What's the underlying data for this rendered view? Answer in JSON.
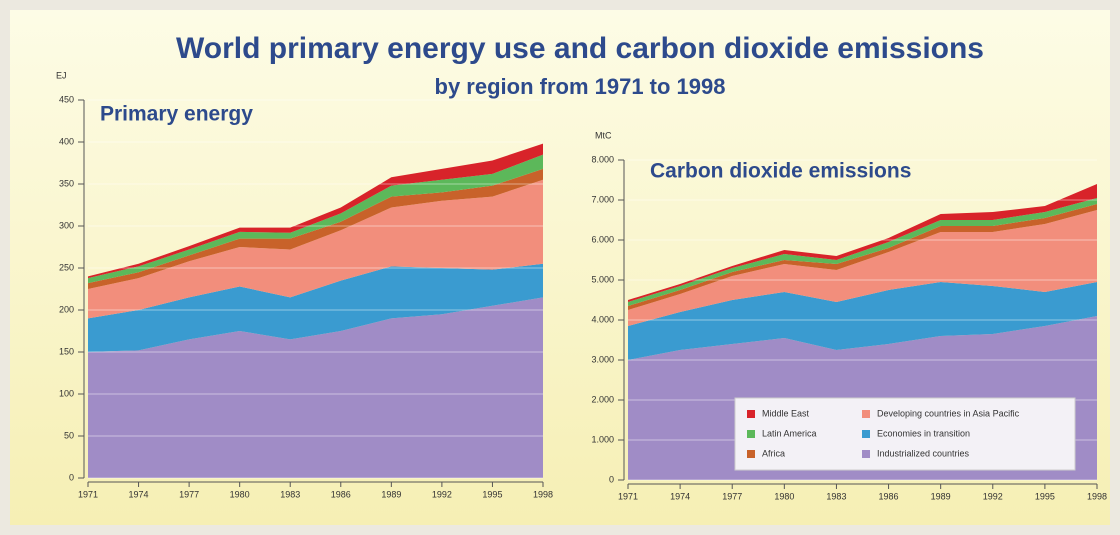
{
  "title": "World primary energy use and carbon dioxide emissions",
  "subtitle": "by region from 1971 to 1998",
  "chart_data": [
    {
      "type": "stacked-area",
      "title": "Primary  energy",
      "y_label": "EJ",
      "x": [
        1971,
        1974,
        1977,
        1980,
        1983,
        1986,
        1989,
        1992,
        1995,
        1998
      ],
      "xlim": [
        1971,
        1998
      ],
      "xticks": [
        1971,
        1974,
        1977,
        1980,
        1983,
        1986,
        1989,
        1992,
        1995,
        1998
      ],
      "ylim": [
        0,
        450
      ],
      "yticks": [
        0,
        50,
        100,
        150,
        200,
        250,
        300,
        350,
        400,
        450
      ],
      "grid": true,
      "legend": false,
      "series": [
        {
          "color": "#a08cc6",
          "values": [
            150,
            152,
            165,
            175,
            165,
            175,
            190,
            195,
            205,
            215
          ]
        },
        {
          "color": "#3a9bd0",
          "values": [
            40,
            48,
            50,
            53,
            50,
            60,
            62,
            55,
            43,
            40
          ]
        },
        {
          "color": "#f28e7c",
          "values": [
            35,
            38,
            43,
            47,
            57,
            60,
            70,
            80,
            87,
            100
          ]
        },
        {
          "color": "#c8622a",
          "values": [
            7,
            7,
            7,
            10,
            13,
            10,
            13,
            10,
            13,
            13
          ]
        },
        {
          "color": "#5cb85a",
          "values": [
            6,
            7,
            7,
            8,
            7,
            10,
            13,
            15,
            14,
            17
          ]
        },
        {
          "color": "#d8232a",
          "values": [
            2,
            3,
            4,
            5,
            6,
            7,
            10,
            13,
            16,
            13
          ]
        }
      ]
    },
    {
      "type": "stacked-area",
      "title": "Carbon dioxide emissions",
      "y_label": "MtC",
      "x": [
        1971,
        1974,
        1977,
        1980,
        1983,
        1986,
        1989,
        1992,
        1995,
        1998
      ],
      "xlim": [
        1971,
        1998
      ],
      "xticks": [
        1971,
        1974,
        1977,
        1980,
        1983,
        1986,
        1989,
        1992,
        1995,
        1998
      ],
      "ylim": [
        0,
        8000
      ],
      "yticks": [
        0,
        {
          "value": 1000,
          "label": "1.000"
        },
        {
          "value": 2000,
          "label": "2.000"
        },
        {
          "value": 3000,
          "label": "3.000"
        },
        {
          "value": 4000,
          "label": "4.000"
        },
        {
          "value": 5000,
          "label": "5.000"
        },
        {
          "value": 6000,
          "label": "6.000"
        },
        {
          "value": 7000,
          "label": "7.000"
        },
        {
          "value": 8000,
          "label": "8.000"
        }
      ],
      "grid": true,
      "legend": "bottom right",
      "series": [
        {
          "name": "Industrialized countries",
          "color": "#a08cc6",
          "values": [
            3000,
            3250,
            3400,
            3550,
            3250,
            3400,
            3600,
            3650,
            3850,
            4100
          ]
        },
        {
          "name": "Economies in transition",
          "color": "#3a9bd0",
          "values": [
            850,
            950,
            1100,
            1150,
            1200,
            1350,
            1350,
            1200,
            850,
            850
          ]
        },
        {
          "name": "Developing countries in Asia Pacific",
          "color": "#f28e7c",
          "values": [
            400,
            450,
            600,
            700,
            800,
            950,
            1250,
            1350,
            1700,
            1800
          ]
        },
        {
          "name": "Africa",
          "color": "#c8622a",
          "values": [
            100,
            100,
            100,
            100,
            150,
            100,
            150,
            150,
            150,
            150
          ]
        },
        {
          "name": "Latin America",
          "color": "#5cb85a",
          "values": [
            100,
            100,
            100,
            150,
            100,
            150,
            150,
            150,
            150,
            150
          ]
        },
        {
          "name": "Middle East",
          "color": "#d8232a",
          "values": [
            50,
            50,
            50,
            100,
            100,
            100,
            150,
            200,
            150,
            350
          ]
        }
      ]
    }
  ]
}
